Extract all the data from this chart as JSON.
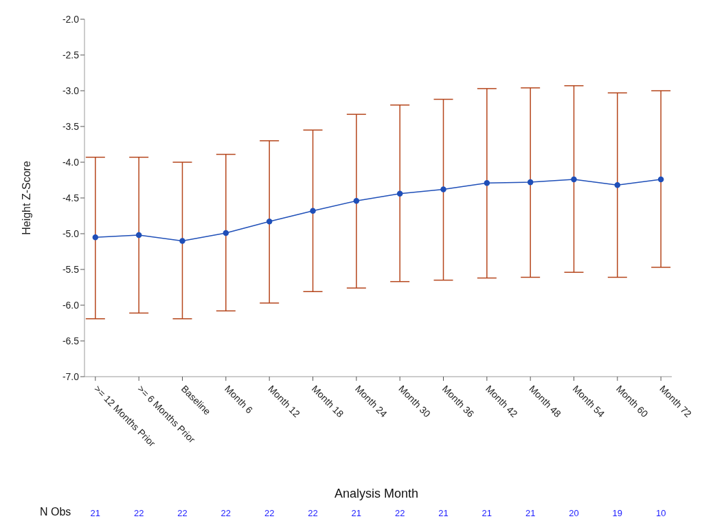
{
  "chart_data": {
    "type": "line",
    "xlabel": "Analysis Month",
    "ylabel": "Height Z-Score",
    "categories": [
      ">= 12 Months Prior",
      ">= 6 Months Prior",
      "Baseline",
      "Month 6",
      "Month 12",
      "Month 18",
      "Month 24",
      "Month 30",
      "Month 36",
      "Month 42",
      "Month 48",
      "Month 54",
      "Month 60",
      "Month 72"
    ],
    "series": [
      {
        "color": "#1f4fb8",
        "values": [
          -5.05,
          -5.02,
          -5.1,
          -4.99,
          -4.83,
          -4.68,
          -4.54,
          -4.44,
          -4.38,
          -4.29,
          -4.28,
          -4.24,
          -4.32,
          -4.24
        ],
        "errors": [
          [
            -6.19,
            -3.93
          ],
          [
            -6.11,
            -3.93
          ],
          [
            -6.19,
            -4.0
          ],
          [
            -6.08,
            -3.89
          ],
          [
            -5.97,
            -3.7
          ],
          [
            -5.81,
            -3.55
          ],
          [
            -5.76,
            -3.33
          ],
          [
            -5.67,
            -3.2
          ],
          [
            -5.65,
            -3.12
          ],
          [
            -5.62,
            -2.97
          ],
          [
            -5.61,
            -2.96
          ],
          [
            -5.54,
            -2.93
          ],
          [
            -5.61,
            -3.03
          ],
          [
            -5.47,
            -3.0
          ]
        ]
      }
    ],
    "ylim": [
      -7.0,
      -2.0
    ],
    "yticks": [
      {
        "value": -7,
        "label": "-7.0"
      },
      {
        "value": -6.5,
        "label": "-6.5"
      },
      {
        "value": -6,
        "label": "-6.0"
      },
      {
        "value": -5.5,
        "label": "-5.5"
      },
      {
        "value": -5,
        "label": "-5.0"
      },
      {
        "value": -4.5,
        "label": "-4.5"
      },
      {
        "value": -4,
        "label": "-4.0"
      },
      {
        "value": -3.5,
        "label": "-3.5"
      },
      {
        "value": -3,
        "label": "-3.0"
      },
      {
        "value": -2.5,
        "label": "-2.5"
      },
      {
        "value": -2,
        "label": "-2.0"
      }
    ],
    "marker": "circle",
    "grid": false,
    "legend": false,
    "annotations": [
      "N Obs",
      "21",
      "22",
      "22",
      "22",
      "22",
      "22",
      "21",
      "22",
      "21",
      "21",
      "21",
      "20",
      "19",
      "10"
    ]
  }
}
